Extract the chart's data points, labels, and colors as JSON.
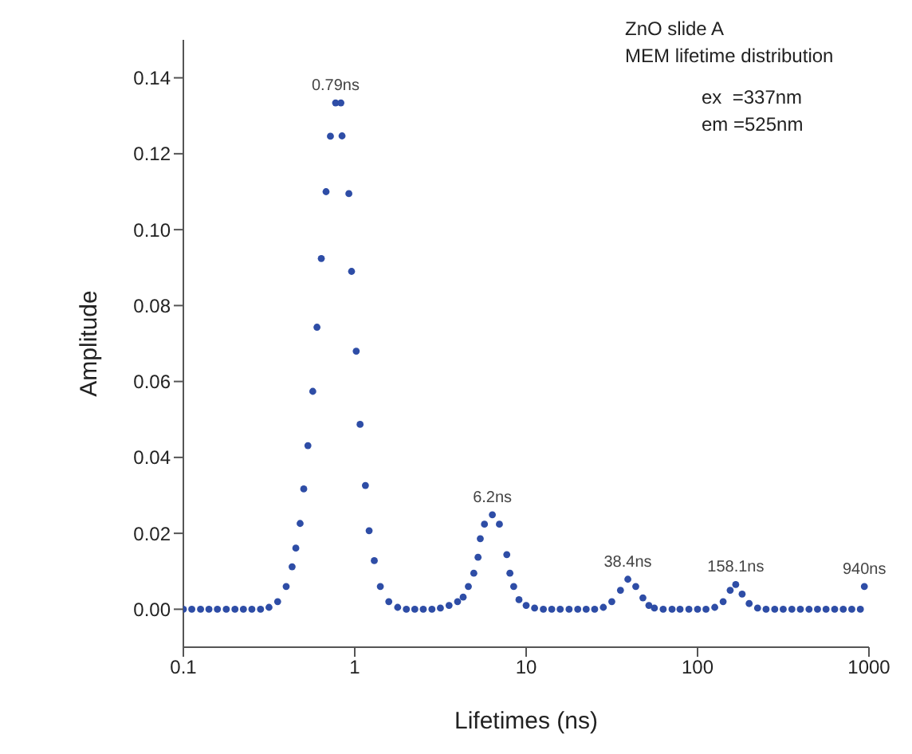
{
  "chart_data": {
    "type": "scatter",
    "xlabel": "Lifetimes (ns)",
    "ylabel": "Amplitude",
    "log": "x",
    "marker": "circle",
    "grid": false,
    "legend": false,
    "xlim": [
      0.1,
      1000
    ],
    "xticks": [
      0.1,
      1,
      10,
      100,
      1000
    ],
    "ylim": [
      -0.01,
      0.15
    ],
    "yticks": [
      {
        "value": 0,
        "label": "0.00"
      },
      0.02,
      0.04,
      0.06,
      0.08,
      {
        "value": 0.1,
        "label": "0.10"
      },
      0.12,
      0.14
    ],
    "annotations": [
      "ZnO slide A",
      "MEM lifetime distribution",
      "ex  =337nm",
      "em =525nm",
      {
        "text": "0.79ns",
        "x": 0.773,
        "y": 0.1334
      },
      {
        "text": "6.2ns",
        "x": 6.35,
        "y": 0.0249
      },
      {
        "text": "38.4ns",
        "x": 39.2,
        "y": 0.0079
      },
      {
        "text": "158.1ns",
        "x": 167,
        "y": 0.0065
      },
      {
        "text": "940ns",
        "x": 940,
        "y": 0.006
      }
    ],
    "series": [
      {
        "color": "#2e4da6",
        "x": [
          0.1,
          0.112,
          0.126,
          0.141,
          0.158,
          0.178,
          0.2,
          0.224,
          0.251,
          0.282,
          0.316,
          0.355,
          0.398,
          0.431,
          0.453,
          0.48,
          0.504,
          0.533,
          0.569,
          0.602,
          0.638,
          0.68,
          0.721,
          0.773,
          0.83,
          0.843,
          0.924,
          0.958,
          1.02,
          1.074,
          1.154,
          1.213,
          1.3,
          1.41,
          1.58,
          1.78,
          2,
          2.24,
          2.51,
          2.82,
          3.16,
          3.55,
          3.98,
          4.29,
          4.6,
          4.95,
          5.24,
          5.4,
          5.71,
          6.35,
          6.98,
          7.71,
          8.04,
          8.46,
          9.08,
          10,
          11.2,
          12.6,
          14.1,
          15.8,
          17.8,
          20,
          22.4,
          25.1,
          28.2,
          31.6,
          35.5,
          39.2,
          43.6,
          48,
          52,
          56,
          63,
          71,
          79,
          89,
          100,
          112,
          126,
          141,
          155,
          167,
          182,
          200,
          224,
          251,
          282,
          316,
          355,
          398,
          447,
          501,
          562,
          631,
          708,
          794,
          891,
          940
        ],
        "values": [
          0,
          0,
          0,
          0,
          0,
          0,
          0,
          0,
          0,
          0,
          0.0005,
          0.002,
          0.006,
          0.0112,
          0.0161,
          0.0226,
          0.0317,
          0.0431,
          0.0574,
          0.0743,
          0.0924,
          0.11,
          0.1246,
          0.1334,
          0.1334,
          0.1247,
          0.1095,
          0.089,
          0.068,
          0.0487,
          0.0326,
          0.0207,
          0.0128,
          0.006,
          0.002,
          0.0005,
          0,
          0,
          0,
          0,
          0.0003,
          0.001,
          0.002,
          0.0032,
          0.006,
          0.0095,
          0.0137,
          0.0186,
          0.0224,
          0.0249,
          0.0224,
          0.0144,
          0.0095,
          0.006,
          0.0025,
          0.001,
          0.0003,
          0,
          0,
          0,
          0,
          0,
          0,
          0,
          0.0005,
          0.002,
          0.005,
          0.0079,
          0.006,
          0.003,
          0.001,
          0.0003,
          0,
          0,
          0,
          0,
          0,
          0,
          0.0005,
          0.002,
          0.005,
          0.0065,
          0.004,
          0.0015,
          0.0003,
          0,
          0,
          0,
          0,
          0,
          0,
          0,
          0,
          0,
          0,
          0,
          0,
          0.006
        ]
      }
    ]
  }
}
